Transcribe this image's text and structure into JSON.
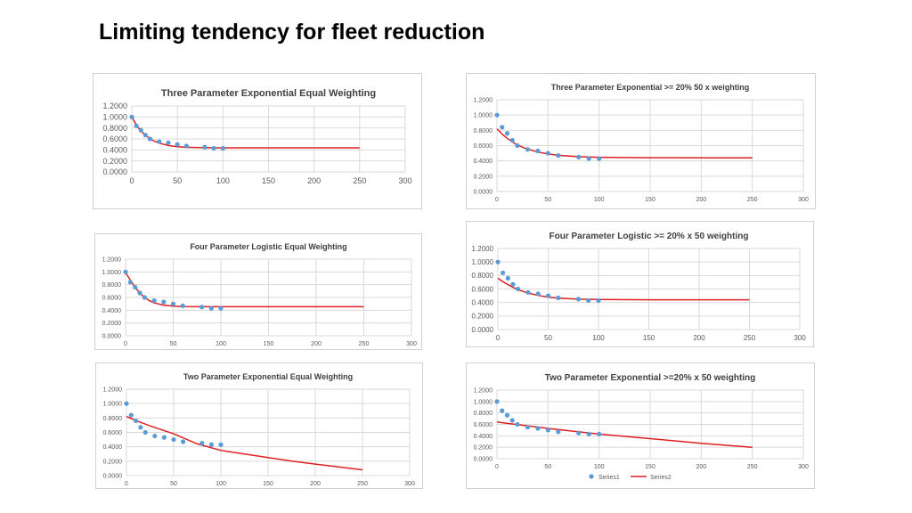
{
  "slide": {
    "title": "Limiting tendency for fleet reduction"
  },
  "colors": {
    "points": "#5b9bd5",
    "curve": "#e02020",
    "grid": "#d9d9d9",
    "ticks": "#595959"
  },
  "chart_data": [
    {
      "id": "c1",
      "type": "scatter",
      "title": "Three Parameter Exponential  Equal Weighting",
      "xlim": [
        0,
        300
      ],
      "ylim": [
        0,
        1.2
      ],
      "x_ticks": [
        0,
        50,
        100,
        150,
        200,
        250,
        300
      ],
      "y_ticks": [
        "0.0000",
        "0.2000",
        "0.4000",
        "0.6000",
        "0.8000",
        "1.0000",
        "1.2000"
      ],
      "grid": true,
      "legend": "none",
      "series": [
        {
          "kind": "points",
          "x": [
            0,
            5,
            10,
            15,
            20,
            30,
            40,
            50,
            60,
            80,
            90,
            100
          ],
          "y": [
            1.0,
            0.84,
            0.76,
            0.67,
            0.6,
            0.55,
            0.53,
            0.5,
            0.47,
            0.45,
            0.43,
            0.43
          ]
        },
        {
          "kind": "line",
          "x": [
            0,
            5,
            10,
            15,
            20,
            25,
            30,
            40,
            50,
            60,
            80,
            100,
            150,
            200,
            250
          ],
          "y": [
            1.0,
            0.854,
            0.745,
            0.664,
            0.603,
            0.558,
            0.524,
            0.48,
            0.458,
            0.447,
            0.44,
            0.438,
            0.438,
            0.438,
            0.438
          ]
        }
      ]
    },
    {
      "id": "c2",
      "type": "scatter",
      "title": "Three Parameter Exponential >= 20% 50 x weighting",
      "xlim": [
        0,
        300
      ],
      "ylim": [
        0,
        1.2
      ],
      "x_ticks": [
        0,
        50,
        100,
        150,
        200,
        250,
        300
      ],
      "y_ticks": [
        "0.0000",
        "0.2000",
        "0.4000",
        "0.6000",
        "0.8000",
        "1.0000",
        "1.2000"
      ],
      "grid": true,
      "legend": "none",
      "series": [
        {
          "kind": "points",
          "x": [
            0,
            5,
            10,
            15,
            20,
            30,
            40,
            50,
            60,
            80,
            90,
            100
          ],
          "y": [
            1.0,
            0.84,
            0.76,
            0.67,
            0.6,
            0.55,
            0.53,
            0.5,
            0.47,
            0.45,
            0.43,
            0.43
          ]
        },
        {
          "kind": "line",
          "x": [
            0,
            5,
            10,
            15,
            20,
            25,
            30,
            40,
            50,
            60,
            80,
            100,
            150,
            200,
            250
          ],
          "y": [
            0.82,
            0.751,
            0.695,
            0.648,
            0.61,
            0.579,
            0.554,
            0.516,
            0.49,
            0.473,
            0.455,
            0.447,
            0.441,
            0.44,
            0.44
          ]
        }
      ]
    },
    {
      "id": "c3",
      "type": "scatter",
      "title": "Four Parameter Logistic Equal Weighting",
      "xlim": [
        0,
        300
      ],
      "ylim": [
        0,
        1.2
      ],
      "x_ticks": [
        0,
        50,
        100,
        150,
        200,
        250,
        300
      ],
      "y_ticks": [
        "0.0000",
        "0.2000",
        "0.4000",
        "0.6000",
        "0.8000",
        "1.0000",
        "1.2000"
      ],
      "grid": true,
      "legend": "none",
      "series": [
        {
          "kind": "points",
          "x": [
            0,
            5,
            10,
            15,
            20,
            30,
            40,
            50,
            60,
            80,
            90,
            100
          ],
          "y": [
            1.0,
            0.84,
            0.76,
            0.67,
            0.6,
            0.55,
            0.53,
            0.5,
            0.47,
            0.45,
            0.43,
            0.43
          ]
        },
        {
          "kind": "line",
          "x": [
            0,
            5,
            10,
            15,
            20,
            25,
            30,
            40,
            50,
            60,
            80,
            100,
            150,
            200,
            250
          ],
          "y": [
            0.99,
            0.87,
            0.76,
            0.67,
            0.6,
            0.55,
            0.515,
            0.48,
            0.465,
            0.458,
            0.455,
            0.455,
            0.455,
            0.455,
            0.455
          ]
        }
      ]
    },
    {
      "id": "c4",
      "type": "scatter",
      "title": "Four Parameter Logistic >= 20% x 50 weighting",
      "xlim": [
        0,
        300
      ],
      "ylim": [
        0,
        1.2
      ],
      "x_ticks": [
        0,
        50,
        100,
        150,
        200,
        250,
        300
      ],
      "y_ticks": [
        "0.0000",
        "0.2000",
        "0.4000",
        "0.6000",
        "0.8000",
        "1.0000",
        "1.2000"
      ],
      "grid": true,
      "legend": "none",
      "series": [
        {
          "kind": "points",
          "x": [
            0,
            5,
            10,
            15,
            20,
            30,
            40,
            50,
            60,
            80,
            90,
            100
          ],
          "y": [
            1.0,
            0.84,
            0.76,
            0.67,
            0.6,
            0.55,
            0.53,
            0.5,
            0.47,
            0.45,
            0.43,
            0.43
          ]
        },
        {
          "kind": "line",
          "x": [
            0,
            5,
            10,
            15,
            20,
            25,
            30,
            40,
            50,
            60,
            80,
            100,
            150,
            200,
            250
          ],
          "y": [
            0.76,
            0.71,
            0.665,
            0.625,
            0.59,
            0.565,
            0.54,
            0.505,
            0.48,
            0.465,
            0.45,
            0.445,
            0.44,
            0.44,
            0.44
          ]
        }
      ]
    },
    {
      "id": "c5",
      "type": "scatter",
      "title": "Two Parameter Exponential Equal Weighting",
      "xlim": [
        0,
        300
      ],
      "ylim": [
        0,
        1.2
      ],
      "x_ticks": [
        0,
        50,
        100,
        150,
        200,
        250,
        300
      ],
      "y_ticks": [
        "0.0000",
        "0.2000",
        "0.4000",
        "0.6000",
        "0.8000",
        "1.0000",
        "1.2000"
      ],
      "grid": true,
      "legend": "none",
      "series": [
        {
          "kind": "points",
          "x": [
            0,
            5,
            10,
            15,
            20,
            30,
            40,
            50,
            60,
            80,
            90,
            100
          ],
          "y": [
            1.0,
            0.84,
            0.76,
            0.67,
            0.6,
            0.55,
            0.53,
            0.5,
            0.47,
            0.45,
            0.43,
            0.43
          ]
        },
        {
          "kind": "line",
          "x": [
            0,
            10,
            25,
            50,
            75,
            100,
            125,
            150,
            175,
            200,
            225,
            250
          ],
          "y": [
            0.82,
            0.765,
            0.69,
            0.58,
            0.44,
            0.35,
            0.3,
            0.25,
            0.2,
            0.16,
            0.12,
            0.08
          ]
        }
      ]
    },
    {
      "id": "c6",
      "type": "scatter",
      "title": "Two Parameter Exponential >=20% x 50 weighting",
      "xlim": [
        0,
        300
      ],
      "ylim": [
        0,
        1.2
      ],
      "x_ticks": [
        0,
        50,
        100,
        150,
        200,
        250,
        300
      ],
      "y_ticks": [
        "0.0000",
        "0.2000",
        "0.4000",
        "0.6000",
        "0.8000",
        "1.0000",
        "1.2000"
      ],
      "grid": true,
      "legend": "bottom",
      "legend_labels": [
        "Series1",
        "Series2"
      ],
      "series": [
        {
          "kind": "points",
          "name": "Series1",
          "x": [
            0,
            5,
            10,
            15,
            20,
            30,
            40,
            50,
            60,
            80,
            90,
            100
          ],
          "y": [
            1.0,
            0.84,
            0.76,
            0.67,
            0.6,
            0.55,
            0.53,
            0.5,
            0.47,
            0.45,
            0.43,
            0.43
          ]
        },
        {
          "kind": "line",
          "name": "Series2",
          "x": [
            0,
            50,
            100,
            150,
            200,
            250
          ],
          "y": [
            0.64,
            0.53,
            0.43,
            0.35,
            0.27,
            0.2
          ]
        }
      ]
    }
  ]
}
